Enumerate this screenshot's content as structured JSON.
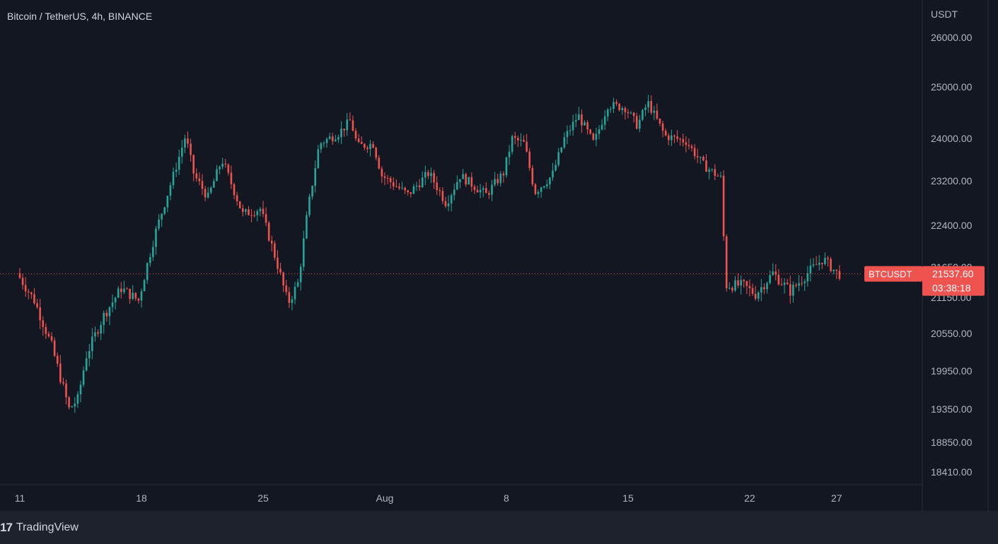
{
  "header": {
    "symbol_title": "Bitcoin / TetherUS, 4h, BINANCE"
  },
  "footer": {
    "brand": "TradingView",
    "brand_mark": "17"
  },
  "colors": {
    "background": "#131722",
    "up": "#26a69a",
    "down": "#ef5350",
    "axis_text": "#b2b5be",
    "price_line": "#ef5350"
  },
  "chart_data": {
    "type": "candlestick",
    "title": "Bitcoin / TetherUS, 4h, BINANCE",
    "y_axis_unit": "USDT",
    "y_axis_side": "right",
    "y_ticks": [
      "26000.00",
      "25000.00",
      "24000.00",
      "23200.00",
      "22400.00",
      "21650.00",
      "21150.00",
      "20550.00",
      "19950.00",
      "19350.00",
      "18850.00",
      "18410.00"
    ],
    "x_ticks": [
      "11",
      "18",
      "25",
      "Aug",
      "8",
      "15",
      "22",
      "27"
    ],
    "ylim": [
      18250,
      26400
    ],
    "grid": false,
    "current_price": {
      "symbol": "BTCUSDT",
      "price": "21537.60",
      "countdown": "03:38:18"
    },
    "price_path": [
      [
        11,
        21550
      ],
      [
        12,
        21100
      ],
      [
        13,
        20350
      ],
      [
        14,
        19350
      ],
      [
        14.5,
        19500
      ],
      [
        15,
        20200
      ],
      [
        16,
        20850
      ],
      [
        17,
        21300
      ],
      [
        18,
        21100
      ],
      [
        19,
        22300
      ],
      [
        20,
        23300
      ],
      [
        20.7,
        24050
      ],
      [
        21.2,
        23300
      ],
      [
        22,
        22900
      ],
      [
        22.8,
        23600
      ],
      [
        24,
        22600
      ],
      [
        25,
        22700
      ],
      [
        25.7,
        22000
      ],
      [
        26.6,
        21050
      ],
      [
        27.2,
        21400
      ],
      [
        27.7,
        22600
      ],
      [
        28.4,
        23900
      ],
      [
        29.5,
        24100
      ],
      [
        30.2,
        24350
      ],
      [
        30.6,
        23850
      ],
      [
        31.5,
        23900
      ],
      [
        32,
        23300
      ],
      [
        33.5,
        22950
      ],
      [
        34.7,
        23350
      ],
      [
        35.7,
        22800
      ],
      [
        36.5,
        23300
      ],
      [
        38,
        22950
      ],
      [
        39,
        23350
      ],
      [
        39.5,
        24000
      ],
      [
        40.2,
        23900
      ],
      [
        40.8,
        23000
      ],
      [
        41.8,
        23300
      ],
      [
        42.5,
        24000
      ],
      [
        43.3,
        24450
      ],
      [
        44.2,
        23900
      ],
      [
        45,
        24650
      ],
      [
        46,
        24600
      ],
      [
        46.7,
        24250
      ],
      [
        47.3,
        24700
      ],
      [
        48.3,
        24050
      ],
      [
        49.5,
        23950
      ],
      [
        50.5,
        23500
      ],
      [
        51.5,
        23250
      ],
      [
        51.8,
        21350
      ],
      [
        52.8,
        21350
      ],
      [
        53.5,
        21200
      ],
      [
        54.5,
        21550
      ],
      [
        55.5,
        21250
      ],
      [
        56.5,
        21550
      ],
      [
        57.4,
        21800
      ],
      [
        58.2,
        21540
      ]
    ]
  }
}
